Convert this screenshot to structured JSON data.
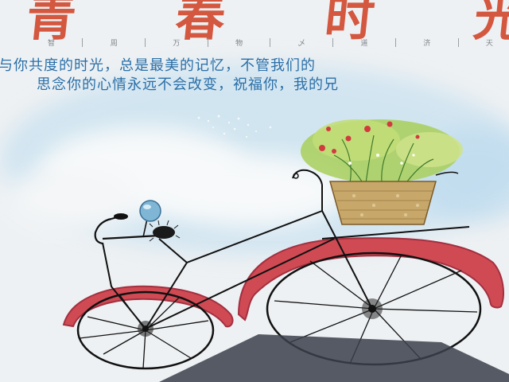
{
  "poster": {
    "headline": "青 春 时 光",
    "subtitle_words": [
      "智",
      "周",
      "万",
      "物",
      "乄",
      "道",
      "济",
      "天"
    ],
    "verse_line_1": "与你共度的时光，总是最美的记忆，不管我们的",
    "verse_line_2": "思念你的心情永远不会改变，祝福你，我的兄"
  },
  "colors": {
    "headline": "#d4573f",
    "verse": "#2a6fa8",
    "bike_fender": "#c9404a",
    "basket": "#c8a86a",
    "flowers": "#a9cf5a",
    "sky": "#c6e0f0",
    "shadow": "#3a3f4a"
  },
  "icons": [
    "bicycle-illustration",
    "flower-basket-icon",
    "bell-icon",
    "cloud-icon"
  ]
}
